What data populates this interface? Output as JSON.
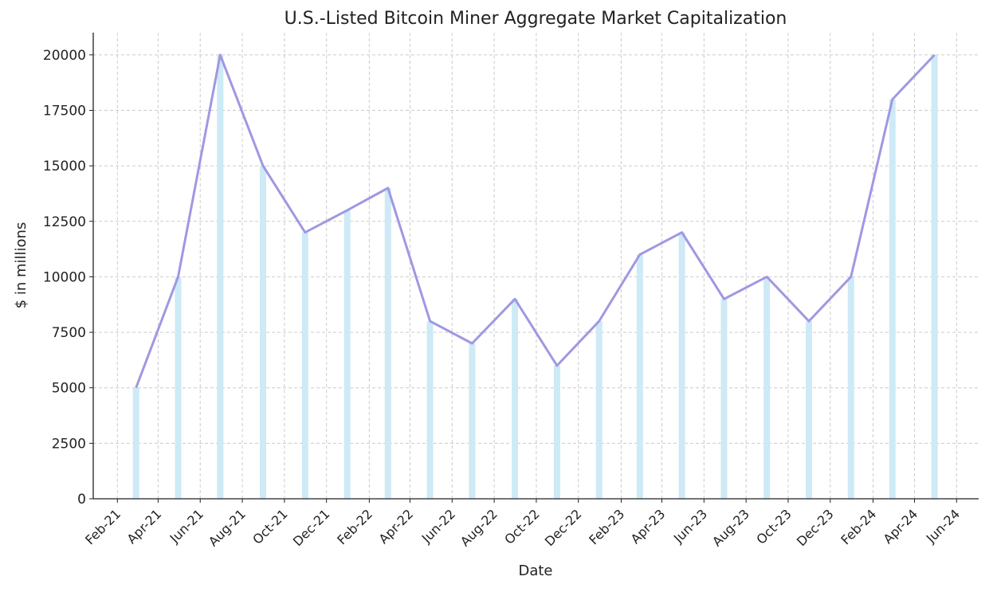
{
  "chart_data": {
    "type": "bar+line",
    "title": "U.S.-Listed Bitcoin Miner Aggregate Market Capitalization",
    "xlabel": "Date",
    "ylabel": "$ in millions",
    "x": [
      "2021-02-28",
      "2021-04-30",
      "2021-06-30",
      "2021-08-31",
      "2021-10-31",
      "2021-12-31",
      "2022-02-28",
      "2022-04-30",
      "2022-06-30",
      "2022-08-31",
      "2022-10-31",
      "2022-12-31",
      "2023-02-28",
      "2023-04-30",
      "2023-06-30",
      "2023-08-31",
      "2023-10-31",
      "2023-12-31",
      "2024-02-29",
      "2024-04-30"
    ],
    "values": [
      5000,
      10000,
      20000,
      15000,
      12000,
      13000,
      14000,
      8000,
      7000,
      9000,
      6000,
      8000,
      11000,
      12000,
      9000,
      10000,
      8000,
      10000,
      18000,
      20000
    ],
    "xlim": [
      "2020-12-28",
      "2024-07-03"
    ],
    "ylim": [
      0,
      21000
    ],
    "xticks": [
      {
        "date": "2021-02-01",
        "label": "Feb-21"
      },
      {
        "date": "2021-04-01",
        "label": "Apr-21"
      },
      {
        "date": "2021-06-01",
        "label": "Jun-21"
      },
      {
        "date": "2021-08-01",
        "label": "Aug-21"
      },
      {
        "date": "2021-10-01",
        "label": "Oct-21"
      },
      {
        "date": "2021-12-01",
        "label": "Dec-21"
      },
      {
        "date": "2022-02-01",
        "label": "Feb-22"
      },
      {
        "date": "2022-04-01",
        "label": "Apr-22"
      },
      {
        "date": "2022-06-01",
        "label": "Jun-22"
      },
      {
        "date": "2022-08-01",
        "label": "Aug-22"
      },
      {
        "date": "2022-10-01",
        "label": "Oct-22"
      },
      {
        "date": "2022-12-01",
        "label": "Dec-22"
      },
      {
        "date": "2023-02-01",
        "label": "Feb-23"
      },
      {
        "date": "2023-04-01",
        "label": "Apr-23"
      },
      {
        "date": "2023-06-01",
        "label": "Jun-23"
      },
      {
        "date": "2023-08-01",
        "label": "Aug-23"
      },
      {
        "date": "2023-10-01",
        "label": "Oct-23"
      },
      {
        "date": "2023-12-01",
        "label": "Dec-23"
      },
      {
        "date": "2024-02-01",
        "label": "Feb-24"
      },
      {
        "date": "2024-04-01",
        "label": "Apr-24"
      },
      {
        "date": "2024-06-01",
        "label": "Jun-24"
      }
    ],
    "yticks": [
      0,
      2500,
      5000,
      7500,
      10000,
      12500,
      15000,
      17500,
      20000
    ],
    "grid": true,
    "colors": {
      "bars": "#cdeaf6",
      "line": "#9f98e2",
      "grid": "#cccccc",
      "axis": "#222222"
    }
  }
}
